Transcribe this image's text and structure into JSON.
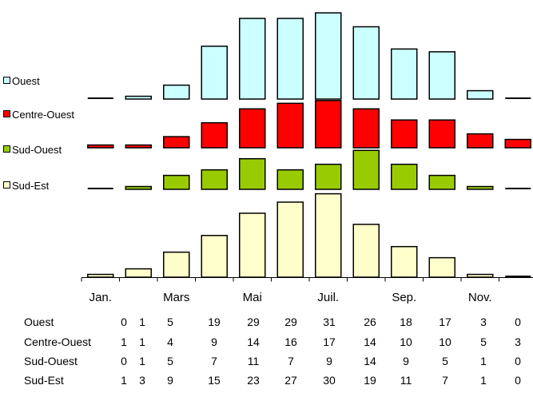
{
  "chart_data": {
    "type": "bar",
    "layout": "stacked-panels",
    "legend_position": "left",
    "grid": false,
    "categories": [
      "Jan.",
      "",
      "Mars",
      "",
      "Mai",
      "",
      "Juil.",
      "",
      "Sep.",
      "",
      "Nov.",
      ""
    ],
    "ylim": [
      0,
      31
    ],
    "series": [
      {
        "name": "Ouest",
        "color": "#ccffff",
        "values": [
          0,
          1,
          5,
          19,
          29,
          29,
          31,
          26,
          18,
          17,
          3,
          0
        ]
      },
      {
        "name": "Centre-Ouest",
        "color": "#ff0000",
        "values": [
          1,
          1,
          4,
          9,
          14,
          16,
          17,
          14,
          10,
          10,
          5,
          3
        ]
      },
      {
        "name": "Sud-Ouest",
        "color": "#99cc00",
        "values": [
          0,
          1,
          5,
          7,
          11,
          7,
          9,
          14,
          9,
          5,
          1,
          0
        ]
      },
      {
        "name": "Sud-Est",
        "color": "#ffffcc",
        "values": [
          1,
          3,
          9,
          15,
          23,
          27,
          30,
          19,
          11,
          7,
          1,
          0
        ]
      }
    ]
  }
}
